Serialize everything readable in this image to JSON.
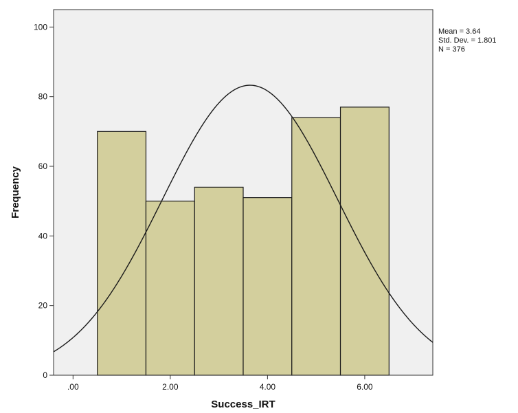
{
  "chart_data": {
    "type": "bar",
    "subtype": "histogram",
    "title": "",
    "xlabel": "Success_IRT",
    "ylabel": "Frequency",
    "bin_edges": [
      0.5,
      1.5,
      2.5,
      3.5,
      4.5,
      5.5,
      6.5
    ],
    "values": [
      70,
      50,
      54,
      51,
      74,
      77
    ],
    "xlim": [
      -0.4,
      7.4
    ],
    "ylim": [
      0,
      105
    ],
    "x_ticks": [
      0,
      2,
      4,
      6
    ],
    "x_tick_labels": [
      ".00",
      "2.00",
      "4.00",
      "6.00"
    ],
    "y_ticks": [
      0,
      20,
      40,
      60,
      80,
      100
    ],
    "y_tick_labels": [
      "0",
      "20",
      "40",
      "60",
      "80",
      "100"
    ],
    "normal_curve": {
      "mean": 3.64,
      "std_dev": 1.801,
      "n": 376,
      "bin_width": 1
    },
    "stats_box": {
      "line1": "Mean = 3.64",
      "line2": "Std. Dev. = 1.801",
      "line3": "N = 376"
    },
    "grid": false,
    "legend_placement": "top-right",
    "colors": {
      "bar_fill": "#d3cf9d",
      "bar_stroke": "#1a1a1a",
      "plot_background": "#f0f0f0",
      "curve": "#1a1a1a",
      "axis": "#333333"
    }
  }
}
